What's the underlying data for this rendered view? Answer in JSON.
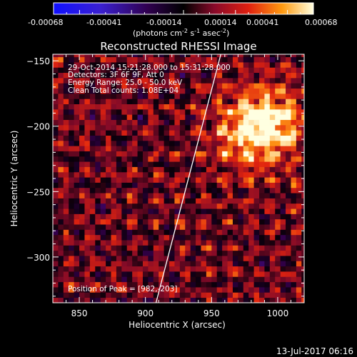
{
  "chart_data": {
    "type": "heatmap",
    "title": "Reconstructed RHESSI Image",
    "xlabel": "Heliocentric X (arcsec)",
    "ylabel": "Heliocentric Y (arcsec)",
    "xlim": [
      830,
      1020
    ],
    "ylim": [
      -335,
      -145
    ],
    "x_ticks": [
      850,
      900,
      950,
      1000
    ],
    "y_ticks": [
      -150,
      -200,
      -250,
      -300
    ],
    "colorbar": {
      "ticks": [
        "-0.00068",
        "-0.00041",
        "-0.00014",
        "0.00014",
        "0.00041",
        "0.00068"
      ],
      "unit_main": "(photons cm",
      "unit_sup1": "-2",
      "unit_mid": " s",
      "unit_sup2": "-1",
      "unit_end": " asec",
      "unit_sup3": "-2",
      "unit_close": ")"
    },
    "info_lines": [
      "29-Oct-2014 15:21:28.000 to 15:31:28.000",
      "Detectors: 3F 6F 9F, Att 0",
      "Energy Range: 25.0 - 50.0 keV",
      "Clean    Total counts: 1.08E+04"
    ],
    "peak_label": "Position of Peak = [982,-203]",
    "peak": [
      982,
      -203
    ],
    "limb_line": [
      [
        908,
        -335
      ],
      [
        957,
        -145
      ]
    ],
    "timestamp": "13-Jul-2017 06:16"
  }
}
